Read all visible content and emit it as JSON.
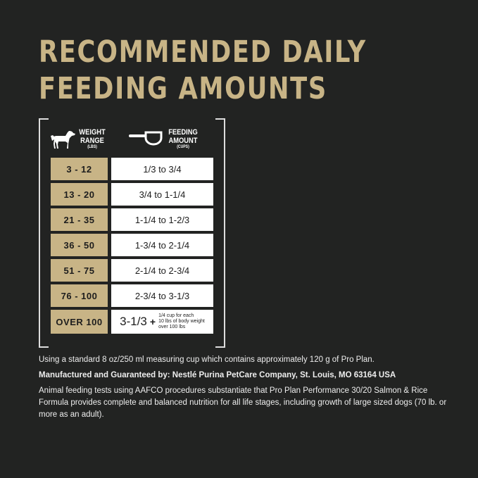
{
  "title": {
    "line1": "RECOMMENDED DAILY",
    "line2": "FEEDING AMOUNTS"
  },
  "table": {
    "weight_header": {
      "line1": "WEIGHT",
      "line2": "RANGE",
      "unit": "(LBS)",
      "icon": "dog-icon"
    },
    "amount_header": {
      "line1": "FEEDING",
      "line2": "AMOUNT",
      "unit": "(CUPS)",
      "icon": "measuring-cup-icon"
    },
    "rows": [
      {
        "weight": "3 - 12",
        "amount": "1/3 to 3/4"
      },
      {
        "weight": "13 - 20",
        "amount": "3/4 to 1-1/4"
      },
      {
        "weight": "21 - 35",
        "amount": "1-1/4 to 1-2/3"
      },
      {
        "weight": "36 - 50",
        "amount": "1-3/4 to 2-1/4"
      },
      {
        "weight": "51 - 75",
        "amount": "2-1/4 to 2-3/4"
      },
      {
        "weight": "76 - 100",
        "amount": "2-3/4 to 3-1/3"
      }
    ],
    "last_row": {
      "weight": "OVER 100",
      "amount": "3-1/3",
      "plus": "+",
      "note1": "1/4 cup for each",
      "note2": "10 lbs of body weight",
      "note3": "over 100 lbs"
    }
  },
  "footer": {
    "measure": "Using a standard 8 oz/250 ml measuring cup which contains approximately 120 g of Pro Plan.",
    "manufacturer": "Manufactured and Guaranteed by: Nestlé Purina PetCare Company, St. Louis, MO 63164 USA",
    "aafco": "Animal feeding tests using AAFCO procedures substantiate that Pro Plan Performance 30/20 Salmon & Rice Formula provides complete and balanced nutrition for all life stages, including growth of large sized dogs (70 lb. or more as an adult)."
  },
  "colors": {
    "background": "#222322",
    "gold": "#c8b486"
  }
}
